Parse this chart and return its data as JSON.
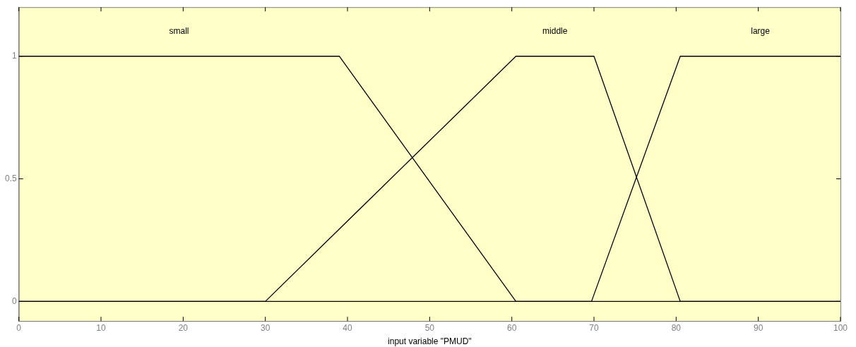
{
  "chart_data": {
    "type": "line",
    "xlabel": "input variable \"PMUD\"",
    "xlim": [
      0,
      100
    ],
    "xticks": [
      0,
      10,
      20,
      30,
      40,
      50,
      60,
      70,
      80,
      90,
      100
    ],
    "ylim": [
      -0.08,
      1.2
    ],
    "yticks": [
      0,
      0.5,
      1
    ],
    "grid": false,
    "legend": false,
    "marker": "none",
    "line_style": "solid",
    "series": [
      {
        "name": "small",
        "color": "#000000",
        "x": [
          0,
          39,
          60.5,
          100
        ],
        "values": [
          1,
          1,
          0,
          0
        ]
      },
      {
        "name": "middle",
        "color": "#000000",
        "x": [
          0,
          30,
          60.5,
          70,
          80.5,
          100
        ],
        "values": [
          0,
          0,
          1,
          1,
          0,
          0
        ]
      },
      {
        "name": "large",
        "color": "#000000",
        "x": [
          0,
          69.7,
          80.5,
          100
        ],
        "values": [
          0,
          0,
          1,
          1
        ]
      }
    ]
  }
}
